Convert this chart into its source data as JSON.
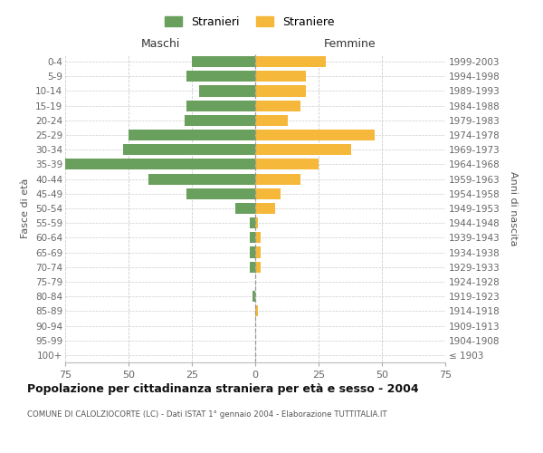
{
  "age_groups": [
    "100+",
    "95-99",
    "90-94",
    "85-89",
    "80-84",
    "75-79",
    "70-74",
    "65-69",
    "60-64",
    "55-59",
    "50-54",
    "45-49",
    "40-44",
    "35-39",
    "30-34",
    "25-29",
    "20-24",
    "15-19",
    "10-14",
    "5-9",
    "0-4"
  ],
  "birth_years": [
    "≤ 1903",
    "1904-1908",
    "1909-1913",
    "1914-1918",
    "1919-1923",
    "1924-1928",
    "1929-1933",
    "1934-1938",
    "1939-1943",
    "1944-1948",
    "1949-1953",
    "1954-1958",
    "1959-1963",
    "1964-1968",
    "1969-1973",
    "1974-1978",
    "1979-1983",
    "1984-1988",
    "1989-1993",
    "1994-1998",
    "1999-2003"
  ],
  "maschi": [
    0,
    0,
    0,
    0,
    1,
    0,
    2,
    2,
    2,
    2,
    8,
    27,
    42,
    75,
    52,
    50,
    28,
    27,
    22,
    27,
    25
  ],
  "femmine": [
    0,
    0,
    0,
    1,
    0,
    0,
    2,
    2,
    2,
    1,
    8,
    10,
    18,
    25,
    38,
    47,
    13,
    18,
    20,
    20,
    28
  ],
  "male_color": "#6aA05e",
  "female_color": "#f5b83a",
  "center_line_color": "#999999",
  "grid_color": "#cccccc",
  "background_color": "#ffffff",
  "title": "Popolazione per cittadinanza straniera per età e sesso - 2004",
  "subtitle": "COMUNE DI CALOLZIOCORTE (LC) - Dati ISTAT 1° gennaio 2004 - Elaborazione TUTTITALIA.IT",
  "xlabel_left": "Maschi",
  "xlabel_right": "Femmine",
  "ylabel_left": "Fasce di età",
  "ylabel_right": "Anni di nascita",
  "legend_male": "Stranieri",
  "legend_female": "Straniere",
  "xlim": 75,
  "bar_height": 0.75
}
